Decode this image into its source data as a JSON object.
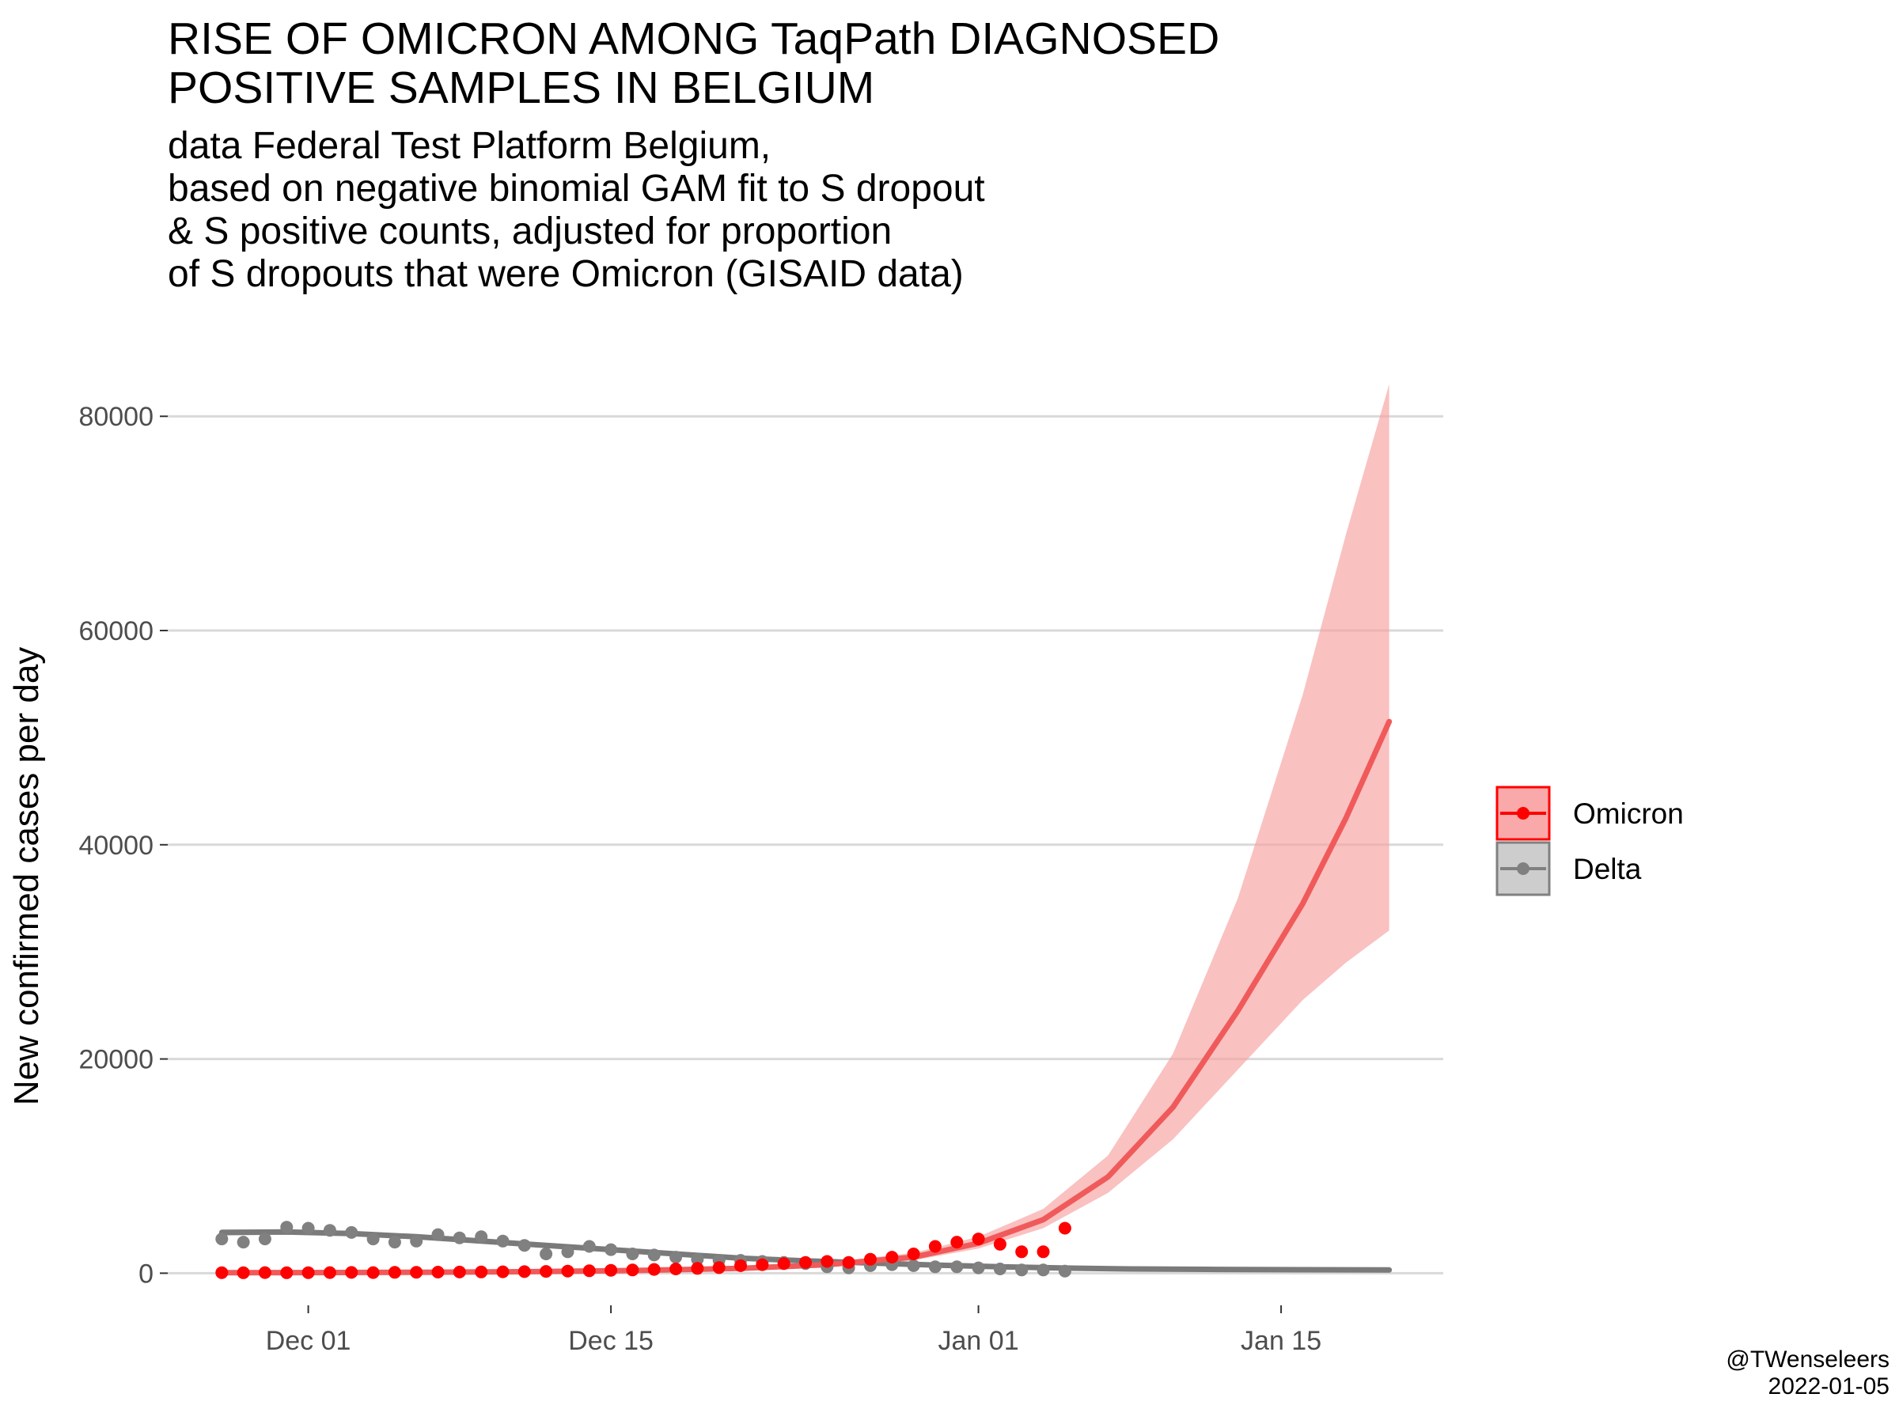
{
  "title": "RISE OF OMICRON AMONG TaqPath DIAGNOSED\nPOSITIVE SAMPLES IN BELGIUM",
  "subtitle": "data Federal Test Platform Belgium,\nbased on negative binomial GAM fit to S dropout\n& S positive counts, adjusted for proportion\nof S dropouts that were Omicron (GISAID data)",
  "credit": "@TWenseleers\n2022-01-05",
  "chart_data": {
    "type": "line",
    "title": "RISE OF OMICRON AMONG TaqPath DIAGNOSED POSITIVE SAMPLES IN BELGIUM",
    "ylabel": "New confirmed cases per day",
    "xlabel": "",
    "x_ticks": [
      "Dec 01",
      "Dec 15",
      "Jan 01",
      "Jan 15"
    ],
    "x_tick_days": [
      0,
      14,
      31,
      45
    ],
    "y_ticks": [
      0,
      20000,
      40000,
      60000,
      80000
    ],
    "xlim_days": [
      -6.5,
      52.5
    ],
    "ylim": [
      -3000,
      86000
    ],
    "grid": "horizontal",
    "legend_position": "right",
    "legend": [
      "Omicron",
      "Delta"
    ],
    "colors": {
      "Omicron": "#ff0000",
      "Delta": "#808080",
      "Omicron_ribbon": "#f8a0a0",
      "Delta_ribbon": "#c8c8c8"
    },
    "x_unit": "days since Dec 01 2021",
    "series": [
      {
        "name": "Omicron",
        "observed_x_days": [
          -4,
          -3,
          -2,
          -1,
          0,
          1,
          2,
          3,
          4,
          5,
          6,
          7,
          8,
          9,
          10,
          11,
          12,
          13,
          14,
          15,
          16,
          17,
          18,
          19,
          20,
          21,
          22,
          23,
          24,
          25,
          26,
          27,
          28,
          29,
          30,
          31,
          32,
          33,
          34,
          35
        ],
        "observed_y": [
          50,
          40,
          60,
          40,
          50,
          60,
          70,
          60,
          80,
          90,
          100,
          110,
          120,
          130,
          150,
          170,
          200,
          230,
          270,
          300,
          350,
          400,
          450,
          520,
          700,
          800,
          900,
          1000,
          1100,
          1000,
          1300,
          1500,
          1800,
          2500,
          2900,
          3200,
          2700,
          2000,
          2000,
          4200
        ],
        "fit_x_days": [
          -4,
          0,
          5,
          10,
          15,
          20,
          24,
          28,
          31,
          34,
          37,
          40,
          43,
          46,
          48,
          50
        ],
        "fit_y": [
          50,
          60,
          90,
          140,
          250,
          450,
          800,
          1500,
          2800,
          5000,
          9000,
          15500,
          24500,
          34500,
          42500,
          51500
        ],
        "fit_lower": [
          30,
          40,
          70,
          110,
          200,
          380,
          650,
          1200,
          2300,
          4200,
          7500,
          12500,
          19000,
          25500,
          29000,
          32000
        ],
        "fit_upper": [
          80,
          90,
          120,
          180,
          320,
          560,
          1000,
          1900,
          3400,
          6000,
          11000,
          20500,
          35000,
          54000,
          69000,
          83000
        ]
      },
      {
        "name": "Delta",
        "observed_x_days": [
          -4,
          -3,
          -2,
          -1,
          0,
          1,
          2,
          3,
          4,
          5,
          6,
          7,
          8,
          9,
          10,
          11,
          12,
          13,
          14,
          15,
          16,
          17,
          18,
          19,
          20,
          21,
          22,
          23,
          24,
          25,
          26,
          27,
          28,
          29,
          30,
          31,
          32,
          33,
          34,
          35
        ],
        "observed_y": [
          3200,
          2900,
          3200,
          4300,
          4200,
          4000,
          3800,
          3200,
          2900,
          3000,
          3600,
          3300,
          3400,
          3000,
          2600,
          1800,
          2000,
          2500,
          2200,
          1800,
          1700,
          1500,
          1300,
          1200,
          1200,
          1100,
          1000,
          900,
          600,
          500,
          700,
          800,
          700,
          600,
          600,
          500,
          400,
          300,
          300,
          200
        ],
        "fit_x_days": [
          -4,
          -1,
          2,
          5,
          8,
          11,
          14,
          17,
          20,
          23,
          26,
          29,
          32,
          35,
          38,
          42,
          46,
          50
        ],
        "fit_y": [
          3800,
          3850,
          3700,
          3400,
          3000,
          2600,
          2200,
          1800,
          1400,
          1150,
          950,
          760,
          600,
          480,
          400,
          350,
          320,
          300
        ],
        "fit_lower": [
          3500,
          3600,
          3500,
          3200,
          2800,
          2400,
          2000,
          1650,
          1300,
          1050,
          860,
          680,
          520,
          400,
          300,
          220,
          160,
          120
        ],
        "fit_upper": [
          4100,
          4100,
          3900,
          3600,
          3200,
          2800,
          2400,
          1950,
          1500,
          1250,
          1050,
          840,
          680,
          560,
          520,
          500,
          490,
          480
        ]
      }
    ]
  }
}
